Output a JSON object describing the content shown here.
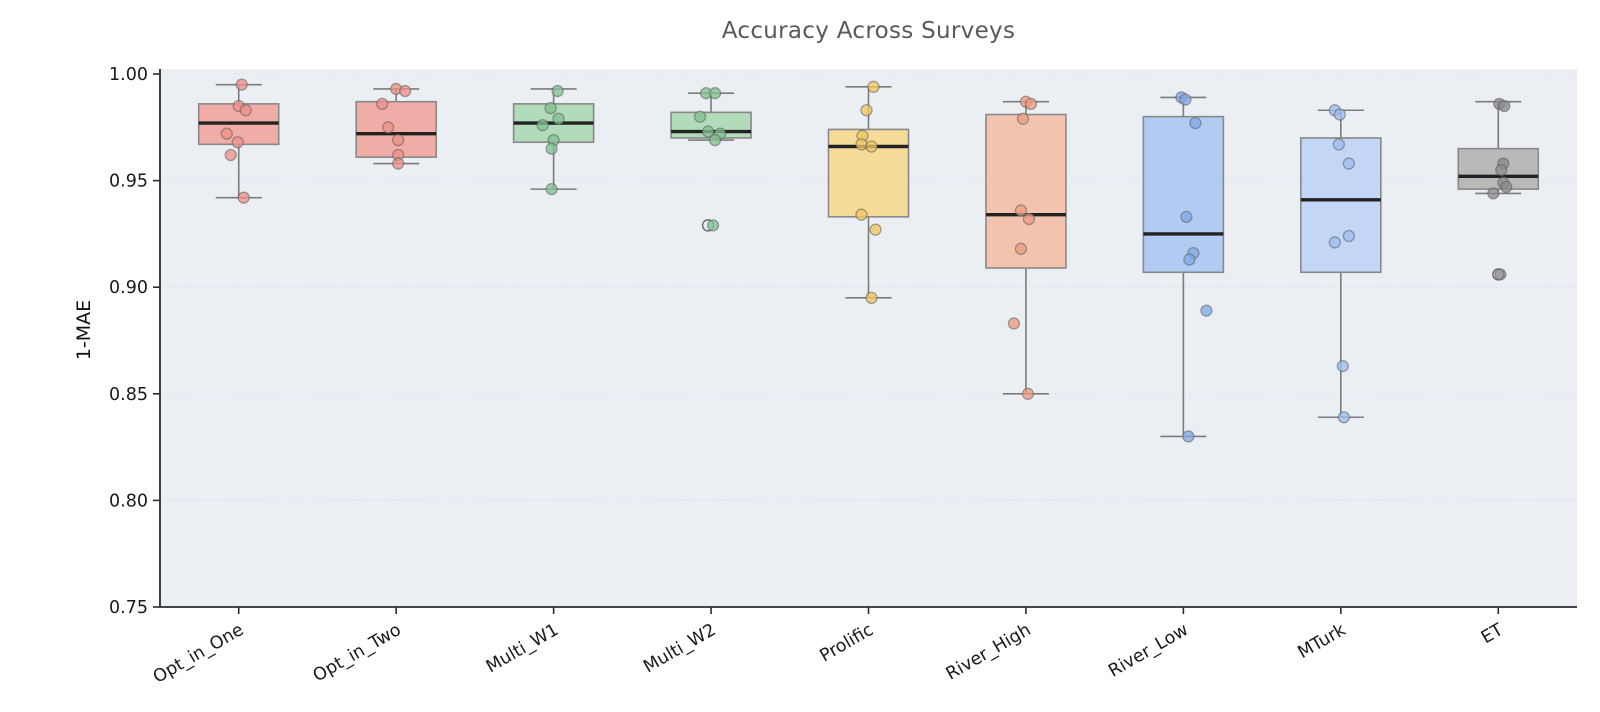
{
  "figure": {
    "title": "Accuracy Across Surveys",
    "ylabel": "1-MAE"
  },
  "colors": {
    "figure_bg": "#ffffff",
    "panel_bg": "#ebeff4",
    "grid": "#ccd3de",
    "spine": "#2b2b2b",
    "tick_label": "#1a1a1a",
    "title": "#595959",
    "whisker": "#7b7b7b",
    "box_edge": "#898989",
    "median": "#222222",
    "outlier_edge": "#4a4a4a"
  },
  "chart_data": {
    "type": "boxplot",
    "title": "Accuracy Across Surveys",
    "xlabel": "",
    "ylabel": "1-MAE",
    "ylim": [
      0.75,
      1.0
    ],
    "grid": true,
    "legend": false,
    "yticks": [
      {
        "v": 1.0,
        "label": "1.00"
      },
      {
        "v": 0.95,
        "label": "0.95"
      },
      {
        "v": 0.9,
        "label": "0.90"
      },
      {
        "v": 0.85,
        "label": "0.85"
      },
      {
        "v": 0.8,
        "label": "0.80"
      },
      {
        "v": 0.75,
        "label": "0.75"
      }
    ],
    "categories": [
      "Opt_in_One",
      "Opt_in_Two",
      "Multi_W1",
      "Multi_W2",
      "Prolific",
      "River_High",
      "River_Low",
      "MTurk",
      "ET"
    ],
    "series": [
      {
        "name": "Opt_in_One",
        "box_color": "#f0a39b",
        "point_color": "#ec9188",
        "whislo": 0.942,
        "q1": 0.967,
        "med": 0.977,
        "q3": 0.986,
        "whishi": 0.995,
        "outliers": [],
        "points": [
          {
            "dx": 3,
            "v": 0.995
          },
          {
            "dx": 0,
            "v": 0.985
          },
          {
            "dx": 7,
            "v": 0.983
          },
          {
            "dx": -12,
            "v": 0.972
          },
          {
            "dx": -1,
            "v": 0.968
          },
          {
            "dx": -8,
            "v": 0.962
          },
          {
            "dx": 5,
            "v": 0.942
          }
        ]
      },
      {
        "name": "Opt_in_Two",
        "box_color": "#f0a39b",
        "point_color": "#ec9188",
        "whislo": 0.958,
        "q1": 0.961,
        "med": 0.972,
        "q3": 0.987,
        "whishi": 0.993,
        "outliers": [],
        "points": [
          {
            "dx": 0,
            "v": 0.993
          },
          {
            "dx": 9,
            "v": 0.992
          },
          {
            "dx": -14,
            "v": 0.986
          },
          {
            "dx": -8,
            "v": 0.975
          },
          {
            "dx": 2,
            "v": 0.969
          },
          {
            "dx": 2,
            "v": 0.962
          },
          {
            "dx": 2,
            "v": 0.958
          }
        ]
      },
      {
        "name": "Multi_W1",
        "box_color": "#a8d8b0",
        "point_color": "#81c290",
        "whislo": 0.946,
        "q1": 0.968,
        "med": 0.977,
        "q3": 0.986,
        "whishi": 0.993,
        "outliers": [],
        "points": [
          {
            "dx": 4,
            "v": 0.992
          },
          {
            "dx": -3,
            "v": 0.984
          },
          {
            "dx": 5,
            "v": 0.979
          },
          {
            "dx": -11,
            "v": 0.976
          },
          {
            "dx": 0,
            "v": 0.969
          },
          {
            "dx": -2,
            "v": 0.965
          },
          {
            "dx": -2,
            "v": 0.946
          }
        ]
      },
      {
        "name": "Multi_W2",
        "box_color": "#a8d8b0",
        "point_color": "#81c290",
        "whislo": 0.969,
        "q1": 0.97,
        "med": 0.973,
        "q3": 0.982,
        "whishi": 0.991,
        "outliers": [
          {
            "dx": -3,
            "v": 0.929
          }
        ],
        "points": [
          {
            "dx": -5,
            "v": 0.991
          },
          {
            "dx": 4,
            "v": 0.991
          },
          {
            "dx": -11,
            "v": 0.98
          },
          {
            "dx": -3,
            "v": 0.973
          },
          {
            "dx": 9,
            "v": 0.972
          },
          {
            "dx": 4,
            "v": 0.969
          },
          {
            "dx": 2,
            "v": 0.929
          }
        ]
      },
      {
        "name": "Prolific",
        "box_color": "#f7d88c",
        "point_color": "#efc75f",
        "whislo": 0.895,
        "q1": 0.933,
        "med": 0.966,
        "q3": 0.974,
        "whishi": 0.994,
        "outliers": [],
        "points": [
          {
            "dx": 5,
            "v": 0.994
          },
          {
            "dx": -2,
            "v": 0.983
          },
          {
            "dx": -6,
            "v": 0.971
          },
          {
            "dx": -7,
            "v": 0.967
          },
          {
            "dx": 3,
            "v": 0.966
          },
          {
            "dx": -7,
            "v": 0.934
          },
          {
            "dx": 7,
            "v": 0.927
          },
          {
            "dx": 3,
            "v": 0.895
          }
        ]
      },
      {
        "name": "River_High",
        "box_color": "#f3bea6",
        "point_color": "#ec9b80",
        "whislo": 0.85,
        "q1": 0.909,
        "med": 0.934,
        "q3": 0.981,
        "whishi": 0.987,
        "outliers": [],
        "points": [
          {
            "dx": 0,
            "v": 0.987
          },
          {
            "dx": 5,
            "v": 0.986
          },
          {
            "dx": -3,
            "v": 0.979
          },
          {
            "dx": -5,
            "v": 0.936
          },
          {
            "dx": 3,
            "v": 0.932
          },
          {
            "dx": -5,
            "v": 0.918
          },
          {
            "dx": -12,
            "v": 0.883
          },
          {
            "dx": 2,
            "v": 0.85
          }
        ]
      },
      {
        "name": "River_Low",
        "box_color": "#a8c6f2",
        "point_color": "#82a9e6",
        "whislo": 0.83,
        "q1": 0.907,
        "med": 0.925,
        "q3": 0.98,
        "whishi": 0.989,
        "outliers": [],
        "points": [
          {
            "dx": -2,
            "v": 0.989
          },
          {
            "dx": 2,
            "v": 0.988
          },
          {
            "dx": 12,
            "v": 0.977
          },
          {
            "dx": 3,
            "v": 0.933
          },
          {
            "dx": 10,
            "v": 0.916
          },
          {
            "dx": 6,
            "v": 0.913
          },
          {
            "dx": 23,
            "v": 0.889
          },
          {
            "dx": 5,
            "v": 0.83
          }
        ]
      },
      {
        "name": "MTurk",
        "box_color": "#bed3f5",
        "point_color": "#9cbcef",
        "whislo": 0.839,
        "q1": 0.907,
        "med": 0.941,
        "q3": 0.97,
        "whishi": 0.983,
        "outliers": [],
        "points": [
          {
            "dx": -6,
            "v": 0.983
          },
          {
            "dx": -1,
            "v": 0.981
          },
          {
            "dx": -2,
            "v": 0.967
          },
          {
            "dx": 8,
            "v": 0.958
          },
          {
            "dx": 8,
            "v": 0.924
          },
          {
            "dx": -6,
            "v": 0.921
          },
          {
            "dx": 2,
            "v": 0.863
          },
          {
            "dx": 3,
            "v": 0.839
          }
        ]
      },
      {
        "name": "ET",
        "box_color": "#b2b2b2",
        "point_color": "#8a8a8a",
        "whislo": 0.944,
        "q1": 0.946,
        "med": 0.952,
        "q3": 0.965,
        "whishi": 0.987,
        "outliers": [
          {
            "dx": 0,
            "v": 0.906
          }
        ],
        "points": [
          {
            "dx": 1,
            "v": 0.986
          },
          {
            "dx": 6,
            "v": 0.985
          },
          {
            "dx": 5,
            "v": 0.958
          },
          {
            "dx": 3,
            "v": 0.955
          },
          {
            "dx": 5,
            "v": 0.949
          },
          {
            "dx": 8,
            "v": 0.947
          },
          {
            "dx": -5,
            "v": 0.944
          },
          {
            "dx": 2,
            "v": 0.906
          }
        ]
      }
    ]
  }
}
